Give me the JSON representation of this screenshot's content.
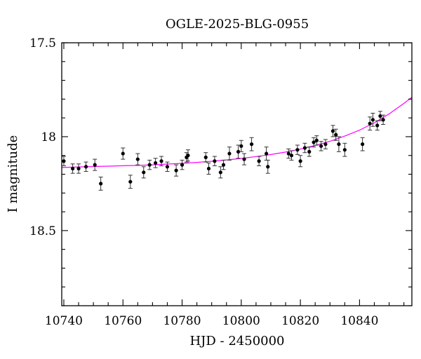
{
  "chart_data": {
    "type": "scatter",
    "title": "OGLE-2025-BLG-0955",
    "xlabel": "HJD - 2450000",
    "ylabel": "I magnitude",
    "xlim": [
      10739.3,
      10857.7
    ],
    "ylim": [
      18.9,
      17.5
    ],
    "y_inverted": true,
    "x_ticks": [
      10740,
      10760,
      10780,
      10800,
      10820,
      10840
    ],
    "x_tick_labels": [
      "10740",
      "10760",
      "10780",
      "10800",
      "10820",
      "10840"
    ],
    "y_ticks": [
      17.5,
      18,
      18.5
    ],
    "y_tick_labels": [
      "17.5",
      "18",
      "18.5"
    ],
    "grid": false,
    "colors": {
      "data": "#000000",
      "model": "#ff00ff"
    },
    "series": [
      {
        "type": "scatter",
        "x": [
          10740.0,
          10743.0,
          10745.0,
          10747.5,
          10750.5,
          10752.5,
          10760.0,
          10762.5,
          10765.0,
          10767.0,
          10769.0,
          10771.0,
          10773.0,
          10775.0,
          10778.0,
          10780.0,
          10781.5,
          10782.0,
          10788.0,
          10789.0,
          10791.0,
          10793.0,
          10794.0,
          10796.0,
          10799.0,
          10800.0,
          10801.0,
          10803.5,
          10806.0,
          10808.5,
          10809.0,
          10816.0,
          10817.0,
          10819.0,
          10820.0,
          10821.5,
          10823.0,
          10824.5,
          10825.5,
          10827.0,
          10828.5,
          10831.0,
          10832.0,
          10833.0,
          10835.0,
          10841.0,
          10843.5,
          10844.5,
          10846.0,
          10847.0,
          10848.0
        ],
        "y": [
          18.13,
          18.17,
          18.17,
          18.16,
          18.15,
          18.25,
          18.09,
          18.24,
          18.12,
          18.19,
          18.15,
          18.14,
          18.13,
          18.16,
          18.18,
          18.15,
          18.11,
          18.1,
          18.11,
          18.17,
          18.13,
          18.19,
          18.15,
          18.09,
          18.08,
          18.05,
          18.12,
          18.04,
          18.13,
          18.09,
          18.16,
          18.09,
          18.1,
          18.07,
          18.13,
          18.06,
          18.08,
          18.03,
          18.02,
          18.05,
          18.04,
          17.97,
          17.99,
          18.04,
          18.07,
          18.04,
          17.93,
          17.91,
          17.94,
          17.89,
          17.91
        ],
        "yerr": [
          0.025,
          0.025,
          0.025,
          0.025,
          0.03,
          0.035,
          0.03,
          0.035,
          0.03,
          0.03,
          0.025,
          0.025,
          0.025,
          0.025,
          0.03,
          0.025,
          0.025,
          0.03,
          0.025,
          0.03,
          0.025,
          0.03,
          0.025,
          0.035,
          0.035,
          0.03,
          0.03,
          0.035,
          0.025,
          0.035,
          0.035,
          0.025,
          0.025,
          0.025,
          0.03,
          0.025,
          0.025,
          0.025,
          0.025,
          0.025,
          0.025,
          0.03,
          0.03,
          0.04,
          0.035,
          0.035,
          0.035,
          0.035,
          0.025,
          0.025,
          0.025
        ]
      },
      {
        "type": "line",
        "x": [
          10739.3,
          10745,
          10750,
          10755,
          10760,
          10765,
          10770,
          10775,
          10780,
          10785,
          10790,
          10795,
          10800,
          10805,
          10810,
          10815,
          10820,
          10825,
          10830,
          10835,
          10840,
          10845,
          10850,
          10855,
          10857.7
        ],
        "y": [
          18.164,
          18.161,
          18.159,
          18.157,
          18.155,
          18.153,
          18.15,
          18.146,
          18.142,
          18.137,
          18.131,
          18.124,
          18.116,
          18.106,
          18.095,
          18.082,
          18.066,
          18.047,
          18.024,
          17.997,
          17.965,
          17.926,
          17.879,
          17.823,
          17.79
        ]
      }
    ]
  }
}
